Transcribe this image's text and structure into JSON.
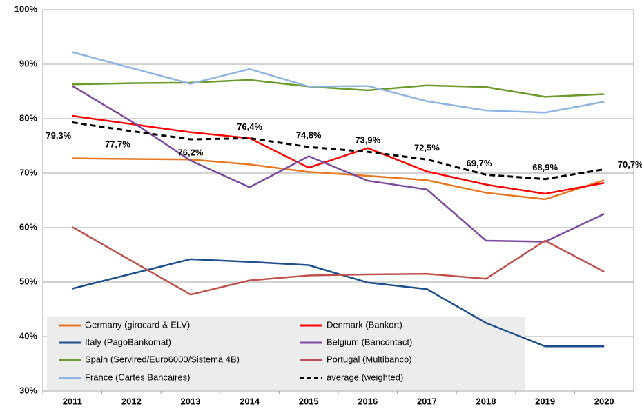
{
  "chart_data": {
    "type": "line",
    "categories": [
      "2011",
      "2012",
      "2013",
      "2014",
      "2015",
      "2016",
      "2017",
      "2018",
      "2019",
      "2020"
    ],
    "ylim": [
      30,
      100
    ],
    "yticks": [
      {
        "value": 30,
        "label": "30%"
      },
      {
        "value": 40,
        "label": "40%"
      },
      {
        "value": 50,
        "label": "50%"
      },
      {
        "value": 60,
        "label": "60%"
      },
      {
        "value": 70,
        "label": "70%"
      },
      {
        "value": 80,
        "label": "80%"
      },
      {
        "value": 90,
        "label": "90%"
      },
      {
        "value": 100,
        "label": "100%"
      }
    ],
    "grid": true,
    "legend": "bottom-left",
    "series": [
      {
        "name": "Germany (girocard & ELV)",
        "color": "#e87722",
        "values": [
          72.7,
          72.6,
          72.5,
          71.6,
          70.2,
          69.5,
          68.7,
          66.4,
          65.2,
          68.7
        ]
      },
      {
        "name": "Denmark (Bankort)",
        "color": "#ff0000",
        "values": [
          80.5,
          79.0,
          77.5,
          76.4,
          71.0,
          74.6,
          70.3,
          67.9,
          66.2,
          68.2
        ]
      },
      {
        "name": "Italy (PagoBankomat)",
        "color": "#1f4e8c",
        "values": [
          48.8,
          51.5,
          54.2,
          53.7,
          53.1,
          49.9,
          48.7,
          42.5,
          38.2,
          38.2
        ]
      },
      {
        "name": "Belgium (Bancontact)",
        "color": "#7b4a9e",
        "values": [
          86.0,
          79.5,
          72.3,
          67.4,
          73.1,
          68.6,
          67.0,
          57.6,
          57.4,
          62.5
        ]
      },
      {
        "name": "Spain (Servired/Euro6000/Sistema 4B)",
        "color": "#6b9a2b",
        "values": [
          86.3,
          86.5,
          86.6,
          87.1,
          85.9,
          85.2,
          86.1,
          85.8,
          84.0,
          84.5
        ]
      },
      {
        "name": "Portugal (Multibanco)",
        "color": "#c0504d",
        "values": [
          60.1,
          53.9,
          47.7,
          50.3,
          51.2,
          51.4,
          51.5,
          50.6,
          57.6,
          51.9
        ]
      },
      {
        "name": "France (Cartes Bancaires)",
        "color": "#8eb4e3",
        "values": [
          92.2,
          89.3,
          86.4,
          89.1,
          85.9,
          86.0,
          83.2,
          81.5,
          81.1,
          83.1
        ]
      },
      {
        "name": "average (weighted)",
        "color": "#000000",
        "dashed": true,
        "values": [
          79.3,
          77.7,
          76.2,
          76.4,
          74.8,
          73.9,
          72.5,
          69.7,
          68.9,
          70.7
        ],
        "value_labels": [
          "79,3%",
          "77,7%",
          "76,2%",
          "76,4%",
          "74,8%",
          "73,9%",
          "72,5%",
          "69,7%",
          "68,9%",
          "70,7%"
        ]
      }
    ]
  }
}
